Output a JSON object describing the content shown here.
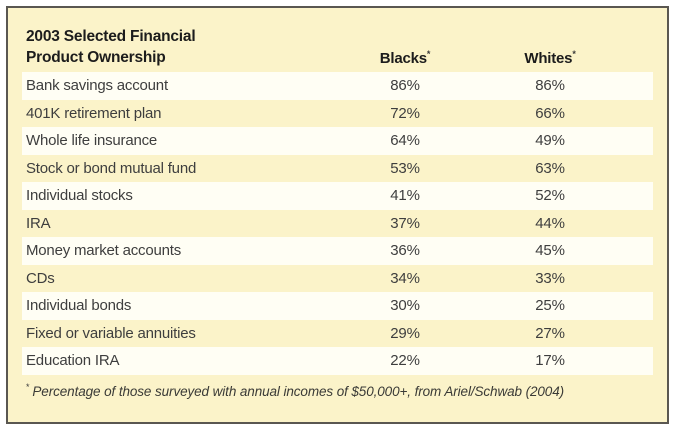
{
  "panel": {
    "title_line1": "2003 Selected Financial",
    "title_line2": "Product Ownership",
    "columns": [
      {
        "label": "Blacks",
        "marker": "*"
      },
      {
        "label": "Whites",
        "marker": "*"
      }
    ],
    "rows": [
      {
        "label": "Bank savings account",
        "blacks": "86%",
        "whites": "86%"
      },
      {
        "label": "401K retirement plan",
        "blacks": "72%",
        "whites": "66%"
      },
      {
        "label": "Whole life insurance",
        "blacks": "64%",
        "whites": "49%"
      },
      {
        "label": "Stock or bond mutual fund",
        "blacks": "53%",
        "whites": "63%"
      },
      {
        "label": "Individual stocks",
        "blacks": "41%",
        "whites": "52%"
      },
      {
        "label": "IRA",
        "blacks": "37%",
        "whites": "44%"
      },
      {
        "label": "Money market accounts",
        "blacks": "36%",
        "whites": "45%"
      },
      {
        "label": "CDs",
        "blacks": "34%",
        "whites": "33%"
      },
      {
        "label": "Individual bonds",
        "blacks": "30%",
        "whites": "25%"
      },
      {
        "label": "Fixed or variable annuities",
        "blacks": "29%",
        "whites": "27%"
      },
      {
        "label": "Education IRA",
        "blacks": "22%",
        "whites": "17%"
      }
    ],
    "footnote": {
      "marker": "*",
      "text": "Percentage of those surveyed with annual incomes of $50,000+, from Ariel/Schwab (2004)"
    }
  },
  "colors": {
    "panel": "#fbf3c9",
    "rowAlt": "#fffef4",
    "border": "#5a5751",
    "ink-dark": "#1c1c1c",
    "ink-row": "#3e3e3e",
    "ink-foot": "#3a3a36"
  },
  "chart_data": {
    "type": "table",
    "title": "2003 Selected Financial Product Ownership",
    "categories": [
      "Bank savings account",
      "401K retirement plan",
      "Whole life insurance",
      "Stock or bond mutual fund",
      "Individual stocks",
      "IRA",
      "Money market accounts",
      "CDs",
      "Individual bonds",
      "Fixed or variable annuities",
      "Education IRA"
    ],
    "series": [
      {
        "name": "Blacks",
        "values": [
          86,
          72,
          64,
          53,
          41,
          37,
          36,
          34,
          30,
          29,
          22
        ]
      },
      {
        "name": "Whites",
        "values": [
          86,
          66,
          49,
          63,
          52,
          44,
          45,
          33,
          25,
          27,
          17
        ]
      }
    ],
    "units": "percent",
    "footnote": "Percentage of those surveyed with annual incomes of $50,000+, from Ariel/Schwab (2004)"
  }
}
